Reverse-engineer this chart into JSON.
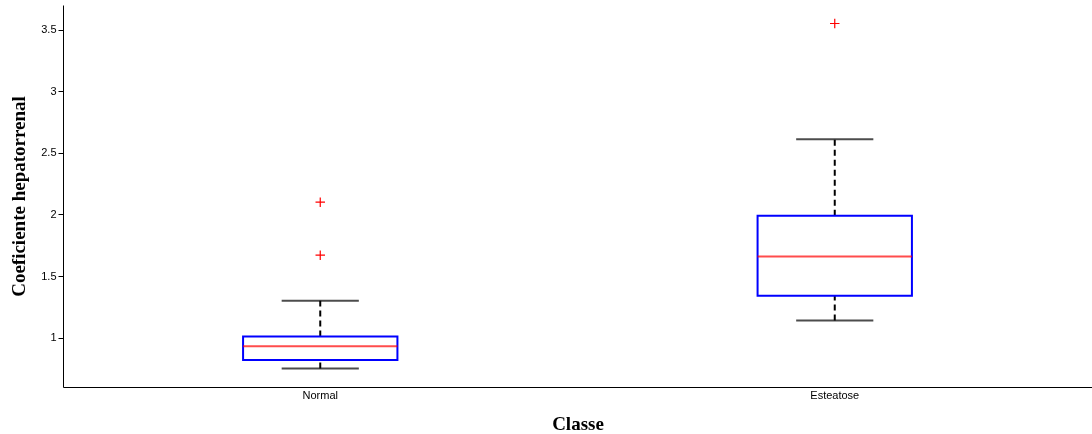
{
  "chart_data": {
    "type": "box",
    "xlabel": "Classe",
    "ylabel": "Coeficiente hepatorrenal",
    "categories": [
      "Normal",
      "Esteatose"
    ],
    "series": [
      {
        "color": "#0000ff",
        "boxes": [
          {
            "low": 0.75,
            "q1": 0.82,
            "median": 0.93,
            "q3": 1.01,
            "high": 1.3,
            "outliers": [
              2.1,
              1.67
            ]
          },
          {
            "low": 1.14,
            "q1": 1.34,
            "median": 1.66,
            "q3": 1.99,
            "high": 2.61,
            "outliers": [
              3.55
            ]
          }
        ]
      }
    ],
    "ylim": [
      0.6,
      3.7
    ],
    "yticks": [
      1,
      1.5,
      2,
      2.5,
      3,
      3.5
    ],
    "grid": false,
    "marker": "cross"
  }
}
